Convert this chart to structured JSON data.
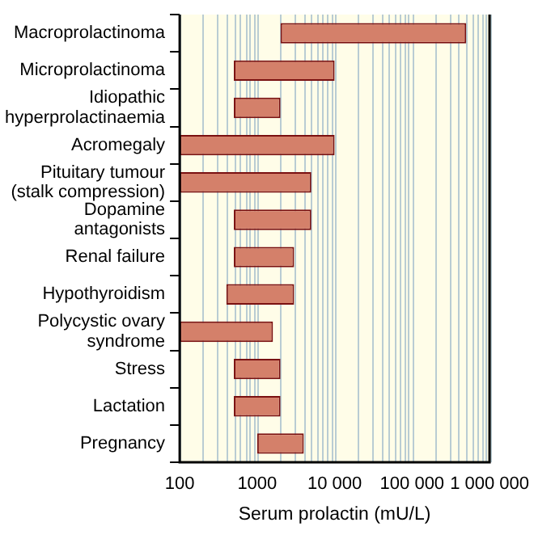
{
  "chart_data": {
    "type": "bar",
    "orientation": "horizontal",
    "log": "x",
    "xlabel": "Serum prolactin (mU/L)",
    "categories": [
      "Macroprolactinoma",
      "Microprolactinoma",
      "Idiopathic hyperprolactinaemia",
      "Acromegaly",
      "Pituitary tumour (stalk compression)",
      "Dopamine antagonists",
      "Renal failure",
      "Hypothyroidism",
      "Polycystic ovary syndrome",
      "Stress",
      "Lactation",
      "Pregnancy"
    ],
    "base": [
      2000,
      500,
      500,
      100,
      100,
      500,
      500,
      400,
      100,
      500,
      500,
      1000
    ],
    "values": [
      498000,
      9500,
      1500,
      9900,
      4900,
      4500,
      2500,
      2600,
      1500,
      1500,
      1500,
      3000
    ],
    "color": "#d4806a",
    "xlim": [
      100,
      1000000
    ],
    "xticks": [
      100,
      1000,
      {
        "value": 10000,
        "label": "10 000"
      },
      {
        "value": 100000,
        "label": "100 000"
      },
      {
        "value": 1000000,
        "label": "1 000 000"
      }
    ],
    "grid": "x"
  }
}
